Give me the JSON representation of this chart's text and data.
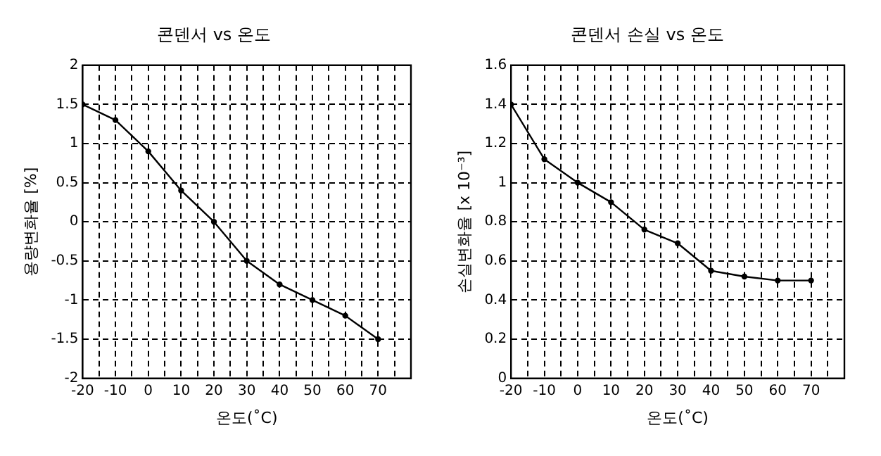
{
  "chart_data": [
    {
      "type": "line",
      "title": "콘덴서 vs 온도",
      "xlabel": "온도(˚C)",
      "ylabel": "용량변화율 [%]",
      "x": [
        -20,
        -10,
        0,
        10,
        20,
        30,
        40,
        50,
        60,
        70
      ],
      "series": [
        {
          "color": "#000000",
          "values": [
            1.5,
            1.3,
            0.9,
            0.4,
            0,
            -0.5,
            -0.8,
            -1.0,
            -1.2,
            -1.5
          ]
        }
      ],
      "xlim": [
        -20,
        80
      ],
      "xticks": [
        -20,
        {
          "value": -15,
          "label": null
        },
        -10,
        {
          "value": -5,
          "label": null
        },
        0,
        {
          "value": 5,
          "label": null
        },
        10,
        {
          "value": 15,
          "label": null
        },
        20,
        {
          "value": 25,
          "label": null
        },
        30,
        {
          "value": 35,
          "label": null
        },
        40,
        {
          "value": 45,
          "label": null
        },
        50,
        {
          "value": 55,
          "label": null
        },
        60,
        {
          "value": 65,
          "label": null
        },
        70,
        {
          "value": 75,
          "label": null
        },
        {
          "value": 80,
          "label": null
        }
      ],
      "ylim": [
        -2,
        2
      ],
      "yticks": [
        -2,
        -1.5,
        -1,
        -0.5,
        0,
        0.5,
        1,
        1.5,
        2
      ],
      "grid": true,
      "legend": false,
      "marker": "circle",
      "line_style": "solid"
    },
    {
      "type": "line",
      "title": "콘덴서 손실 vs 온도",
      "xlabel": "온도(˚C)",
      "ylabel": "손실변화율 [x 10⁻³]",
      "x": [
        -20,
        -10,
        0,
        10,
        20,
        30,
        40,
        50,
        60,
        70
      ],
      "series": [
        {
          "color": "#000000",
          "values": [
            1.4,
            1.12,
            1.0,
            0.9,
            0.76,
            0.69,
            0.55,
            0.52,
            0.5,
            0.5
          ]
        }
      ],
      "xlim": [
        -20,
        80
      ],
      "xticks": [
        -20,
        {
          "value": -15,
          "label": null
        },
        -10,
        {
          "value": -5,
          "label": null
        },
        0,
        {
          "value": 5,
          "label": null
        },
        10,
        {
          "value": 15,
          "label": null
        },
        20,
        {
          "value": 25,
          "label": null
        },
        30,
        {
          "value": 35,
          "label": null
        },
        40,
        {
          "value": 45,
          "label": null
        },
        50,
        {
          "value": 55,
          "label": null
        },
        60,
        {
          "value": 65,
          "label": null
        },
        70,
        {
          "value": 75,
          "label": null
        },
        {
          "value": 80,
          "label": null
        }
      ],
      "ylim": [
        0,
        1.6
      ],
      "yticks": [
        0,
        0.2,
        0.4,
        0.6,
        0.8,
        1,
        1.2,
        1.4,
        1.6
      ],
      "grid": true,
      "legend": false,
      "marker": "circle",
      "line_style": "solid"
    }
  ]
}
